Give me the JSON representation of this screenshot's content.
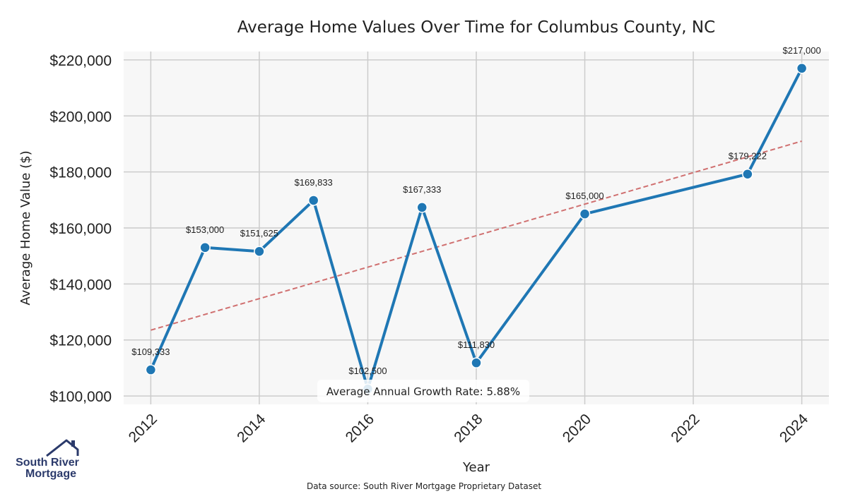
{
  "chart_data": {
    "type": "line",
    "title": "Average Home Values Over Time for Columbus County, NC",
    "xlabel": "Year",
    "ylabel": "Average Home Value ($)",
    "x": [
      2012,
      2013,
      2014,
      2015,
      2016,
      2017,
      2018,
      2020,
      2023,
      2024
    ],
    "series": [
      {
        "values": [
          109333,
          153000,
          151625,
          169833,
          102500,
          167333,
          111830,
          165000,
          179222,
          217000
        ],
        "labels": [
          "$109,333",
          "$153,000",
          "$151,625",
          "$169,833",
          "$102,500",
          "$167,333",
          "$111,830",
          "$165,000",
          "$179,222",
          "$217,000"
        ],
        "color": "#1f77b4"
      }
    ],
    "trendline": {
      "style": "dashed",
      "color": "#d07070",
      "start": [
        2012,
        123500
      ],
      "end": [
        2024,
        191000
      ]
    },
    "xlim": [
      2011.5,
      2024.5
    ],
    "ylim": [
      97000,
      223000
    ],
    "xticks": [
      2012,
      2014,
      2016,
      2018,
      2020,
      2022,
      2024
    ],
    "xtick_labels": [
      "2012",
      "2014",
      "2016",
      "2018",
      "2020",
      "2022",
      "2024"
    ],
    "yticks": [
      100000,
      120000,
      140000,
      160000,
      180000,
      200000,
      220000
    ],
    "ytick_labels": [
      "$100,000",
      "$120,000",
      "$140,000",
      "$160,000",
      "$180,000",
      "$200,000",
      "$220,000"
    ],
    "grid": true,
    "annotation": "Average Annual Growth Rate: 5.88%"
  },
  "footer": {
    "source": "Data source: South River Mortgage Proprietary Dataset"
  },
  "logo": {
    "line1": "South River",
    "line2": "Mortgage",
    "color": "#2b3a6b"
  }
}
